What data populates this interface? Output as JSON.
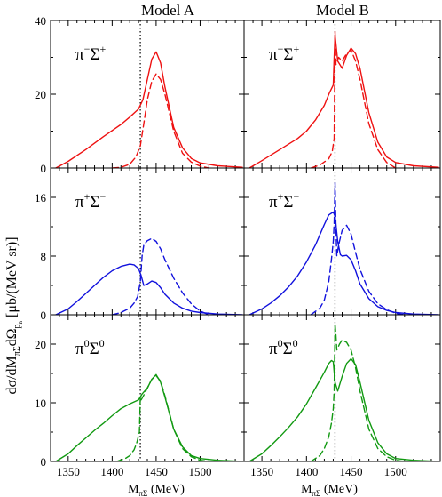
{
  "figure": {
    "columns": [
      "Model A",
      "Model B"
    ],
    "ylabel": "dσ/dM_πΣdΩ_p_n [μb/(MeV sr)]",
    "ylabel_parts": {
      "main": "dσ/dM",
      "sub1": "πΣ",
      "mid": "dΩ",
      "sub2": "p",
      "sub3": "n",
      "units": " [μb/(MeV sr)]"
    },
    "xlabel_parts": {
      "main": "M",
      "sub": "πΣ",
      "units": " (MeV)"
    }
  },
  "chart_data": {
    "type": "line",
    "xlim": [
      1330,
      1550
    ],
    "x_ticks": [
      "1350",
      "1400",
      "1450",
      "1500"
    ],
    "xlabel": "M_πΣ (MeV)",
    "threshold_x": 1432,
    "legend": "none",
    "line_styles": {
      "solid": "solid",
      "dashed": "dashed"
    },
    "rows": [
      {
        "label": "π⁻Σ⁺",
        "label_main": "π",
        "label_sup1": "−",
        "label_mid": "Σ",
        "label_sup2": "+",
        "color": "#ee1111",
        "ylim": [
          0,
          40
        ],
        "y_ticks": [
          "0",
          "20",
          "40"
        ],
        "panels": [
          {
            "model": "Model A",
            "solid": {
              "x": [
                1336,
                1350,
                1370,
                1390,
                1410,
                1420,
                1430,
                1435,
                1440,
                1445,
                1450,
                1455,
                1460,
                1470,
                1480,
                1490,
                1500,
                1520,
                1548
              ],
              "y": [
                0,
                1.8,
                5,
                8.5,
                11.8,
                13.8,
                16,
                18.5,
                24,
                29.5,
                31.5,
                28.5,
                22,
                11,
                5.5,
                2.6,
                1.4,
                0.6,
                0.2
              ]
            },
            "dashed": {
              "x": [
                1400,
                1410,
                1420,
                1427,
                1432,
                1436,
                1440,
                1445,
                1450,
                1455,
                1460,
                1470,
                1480,
                1490,
                1500,
                1510
              ],
              "y": [
                0,
                0.2,
                1,
                3,
                6,
                12,
                18.5,
                23.5,
                25.5,
                24,
                20,
                10,
                4,
                1.6,
                0.5,
                0
              ]
            }
          },
          {
            "model": "Model B",
            "solid": {
              "x": [
                1336,
                1350,
                1370,
                1390,
                1400,
                1410,
                1420,
                1426,
                1430,
                1431,
                1432,
                1435,
                1440,
                1445,
                1450,
                1455,
                1460,
                1470,
                1480,
                1490,
                1500,
                1520,
                1548
              ],
              "y": [
                0,
                2,
                5,
                8,
                10,
                13,
                17,
                20.5,
                22.5,
                30,
                36,
                29,
                27,
                30.5,
                32.5,
                31,
                27,
                15,
                7,
                3,
                1.5,
                0.6,
                0.2
              ]
            },
            "dashed": {
              "x": [
                1405,
                1415,
                1425,
                1429,
                1431,
                1432,
                1433,
                1436,
                1440,
                1445,
                1450,
                1455,
                1460,
                1470,
                1480,
                1490,
                1500
              ],
              "y": [
                0,
                0.8,
                2.5,
                4.5,
                8,
                37,
                28,
                30,
                29,
                31,
                32,
                29,
                24,
                12,
                5,
                1.5,
                0
              ]
            }
          }
        ]
      },
      {
        "label": "π⁺Σ⁻",
        "label_main": "π",
        "label_sup1": "+",
        "label_mid": "Σ",
        "label_sup2": "−",
        "color": "#1111dd",
        "ylim": [
          0,
          20
        ],
        "y_ticks": [
          "0",
          "8",
          "16"
        ],
        "panels": [
          {
            "model": "Model A",
            "solid": {
              "x": [
                1336,
                1350,
                1360,
                1370,
                1380,
                1390,
                1400,
                1410,
                1420,
                1425,
                1430,
                1433,
                1436,
                1440,
                1445,
                1450,
                1455,
                1460,
                1470,
                1480,
                1490,
                1500,
                1520,
                1548
              ],
              "y": [
                0,
                0.8,
                1.8,
                2.9,
                4,
                5.1,
                6,
                6.6,
                6.9,
                6.8,
                6.3,
                5.3,
                4,
                4.2,
                4.6,
                4.4,
                3.7,
                2.8,
                1.6,
                0.9,
                0.5,
                0.3,
                0.1,
                0
              ]
            },
            "dashed": {
              "x": [
                1400,
                1410,
                1420,
                1425,
                1429,
                1432,
                1434,
                1436,
                1440,
                1445,
                1450,
                1455,
                1460,
                1470,
                1480,
                1490,
                1500,
                1510
              ],
              "y": [
                0,
                0.3,
                0.9,
                1.6,
                2.5,
                4.5,
                8,
                9.5,
                10.1,
                10.4,
                10,
                9,
                7.5,
                5,
                3,
                1.5,
                0.5,
                0
              ]
            }
          },
          {
            "model": "Model B",
            "solid": {
              "x": [
                1336,
                1350,
                1360,
                1370,
                1380,
                1390,
                1400,
                1410,
                1420,
                1425,
                1430,
                1432,
                1435,
                1438,
                1440,
                1445,
                1450,
                1455,
                1460,
                1470,
                1480,
                1490,
                1500,
                1520,
                1548
              ],
              "y": [
                0,
                0.8,
                1.6,
                2.6,
                3.8,
                5.3,
                7.2,
                9.5,
                12.3,
                13.6,
                14,
                13.4,
                10,
                8.2,
                8,
                8.1,
                7.5,
                6,
                4.2,
                2.2,
                1.1,
                0.6,
                0.3,
                0.1,
                0
              ]
            },
            "dashed": {
              "x": [
                1405,
                1415,
                1420,
                1425,
                1428,
                1430,
                1431,
                1432,
                1433,
                1434,
                1436,
                1440,
                1445,
                1450,
                1455,
                1460,
                1470,
                1480,
                1490,
                1500,
                1510
              ],
              "y": [
                0,
                0.9,
                2,
                4.5,
                7.5,
                10,
                12.5,
                18,
                12,
                8,
                9.5,
                11.5,
                12.2,
                11,
                8.5,
                6.2,
                3.2,
                1.5,
                0.7,
                0.2,
                0
              ]
            }
          }
        ]
      },
      {
        "label": "π⁰Σ⁰",
        "label_main": "π",
        "label_sup1": "0",
        "label_mid": "Σ",
        "label_sup2": "0",
        "color": "#119911",
        "ylim": [
          0,
          25
        ],
        "y_ticks": [
          "0",
          "10",
          "20"
        ],
        "panels": [
          {
            "model": "Model A",
            "solid": {
              "x": [
                1336,
                1350,
                1360,
                1370,
                1380,
                1390,
                1400,
                1410,
                1420,
                1430,
                1434,
                1437,
                1440,
                1445,
                1450,
                1455,
                1460,
                1470,
                1480,
                1490,
                1500,
                1520,
                1548
              ],
              "y": [
                0,
                1.3,
                2.7,
                4,
                5.3,
                6.5,
                7.8,
                9,
                9.8,
                10.5,
                11.5,
                12,
                12.5,
                14,
                14.8,
                13.5,
                11,
                5.5,
                2.5,
                1,
                0.5,
                0.2,
                0
              ]
            },
            "dashed": {
              "x": [
                1405,
                1415,
                1420,
                1425,
                1428,
                1431,
                1432,
                1433,
                1436,
                1440,
                1445,
                1450,
                1455,
                1460,
                1470,
                1480,
                1490,
                1500,
                1510
              ],
              "y": [
                0,
                0.5,
                1,
                2,
                3.2,
                5,
                11,
                10.5,
                11.3,
                12.5,
                14,
                14.6,
                13.7,
                11.2,
                5.5,
                2.2,
                0.8,
                0.2,
                0
              ]
            }
          },
          {
            "model": "Model B",
            "solid": {
              "x": [
                1336,
                1350,
                1360,
                1370,
                1380,
                1390,
                1400,
                1410,
                1420,
                1425,
                1428,
                1430,
                1432,
                1435,
                1440,
                1445,
                1450,
                1455,
                1460,
                1470,
                1480,
                1490,
                1500,
                1520,
                1548
              ],
              "y": [
                0,
                1.3,
                2.7,
                4.2,
                5.8,
                7.6,
                9.8,
                12.5,
                15.2,
                16.7,
                17.2,
                17,
                13.5,
                12,
                14.5,
                16.7,
                17.5,
                16.5,
                13.5,
                7,
                3.2,
                1.3,
                0.5,
                0.2,
                0
              ]
            },
            "dashed": {
              "x": [
                1405,
                1415,
                1420,
                1425,
                1428,
                1430,
                1431,
                1432,
                1433,
                1434,
                1437,
                1440,
                1445,
                1450,
                1455,
                1460,
                1470,
                1480,
                1490,
                1500,
                1510
              ],
              "y": [
                0,
                1,
                2.2,
                4.2,
                6.5,
                9,
                12,
                23.5,
                21.5,
                19,
                20,
                20.7,
                20.3,
                19,
                16,
                12,
                5.5,
                2.2,
                0.8,
                0.2,
                0
              ]
            }
          }
        ]
      }
    ]
  }
}
